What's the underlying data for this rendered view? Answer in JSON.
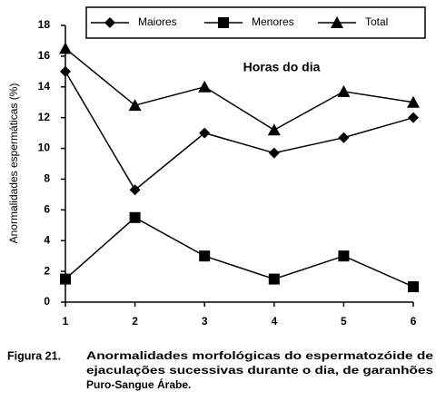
{
  "chart_data": {
    "type": "line",
    "y_label": "Anormalidades espermáticas (%)",
    "annotation": "Horas do dia",
    "x": [
      1,
      2,
      3,
      4,
      5,
      6
    ],
    "xlim": [
      1,
      6
    ],
    "xticks": [
      1,
      2,
      3,
      4,
      5,
      6
    ],
    "ylim": [
      0,
      18
    ],
    "yticks": [
      0,
      2,
      4,
      6,
      8,
      10,
      12,
      14,
      16,
      18
    ],
    "legend": "top",
    "series": [
      {
        "name": "Maiores",
        "color": "#000000",
        "marker": "diamond",
        "values": [
          15,
          7.3,
          11,
          9.7,
          10.7,
          12
        ]
      },
      {
        "name": "Menores",
        "color": "#000000",
        "marker": "square",
        "values": [
          1.5,
          5.5,
          3,
          1.5,
          3,
          1
        ]
      },
      {
        "name": "Total",
        "color": "#000000",
        "marker": "triangle",
        "values": [
          16.5,
          12.8,
          14,
          11.2,
          13.7,
          13
        ]
      }
    ],
    "caption_label": "Figura 21.",
    "caption_lines": [
      "Anormalidades morfológicas do espermatozóide de",
      "ejaculações sucessivas durante o dia, de garanhões",
      "Puro-Sangue Árabe."
    ]
  }
}
